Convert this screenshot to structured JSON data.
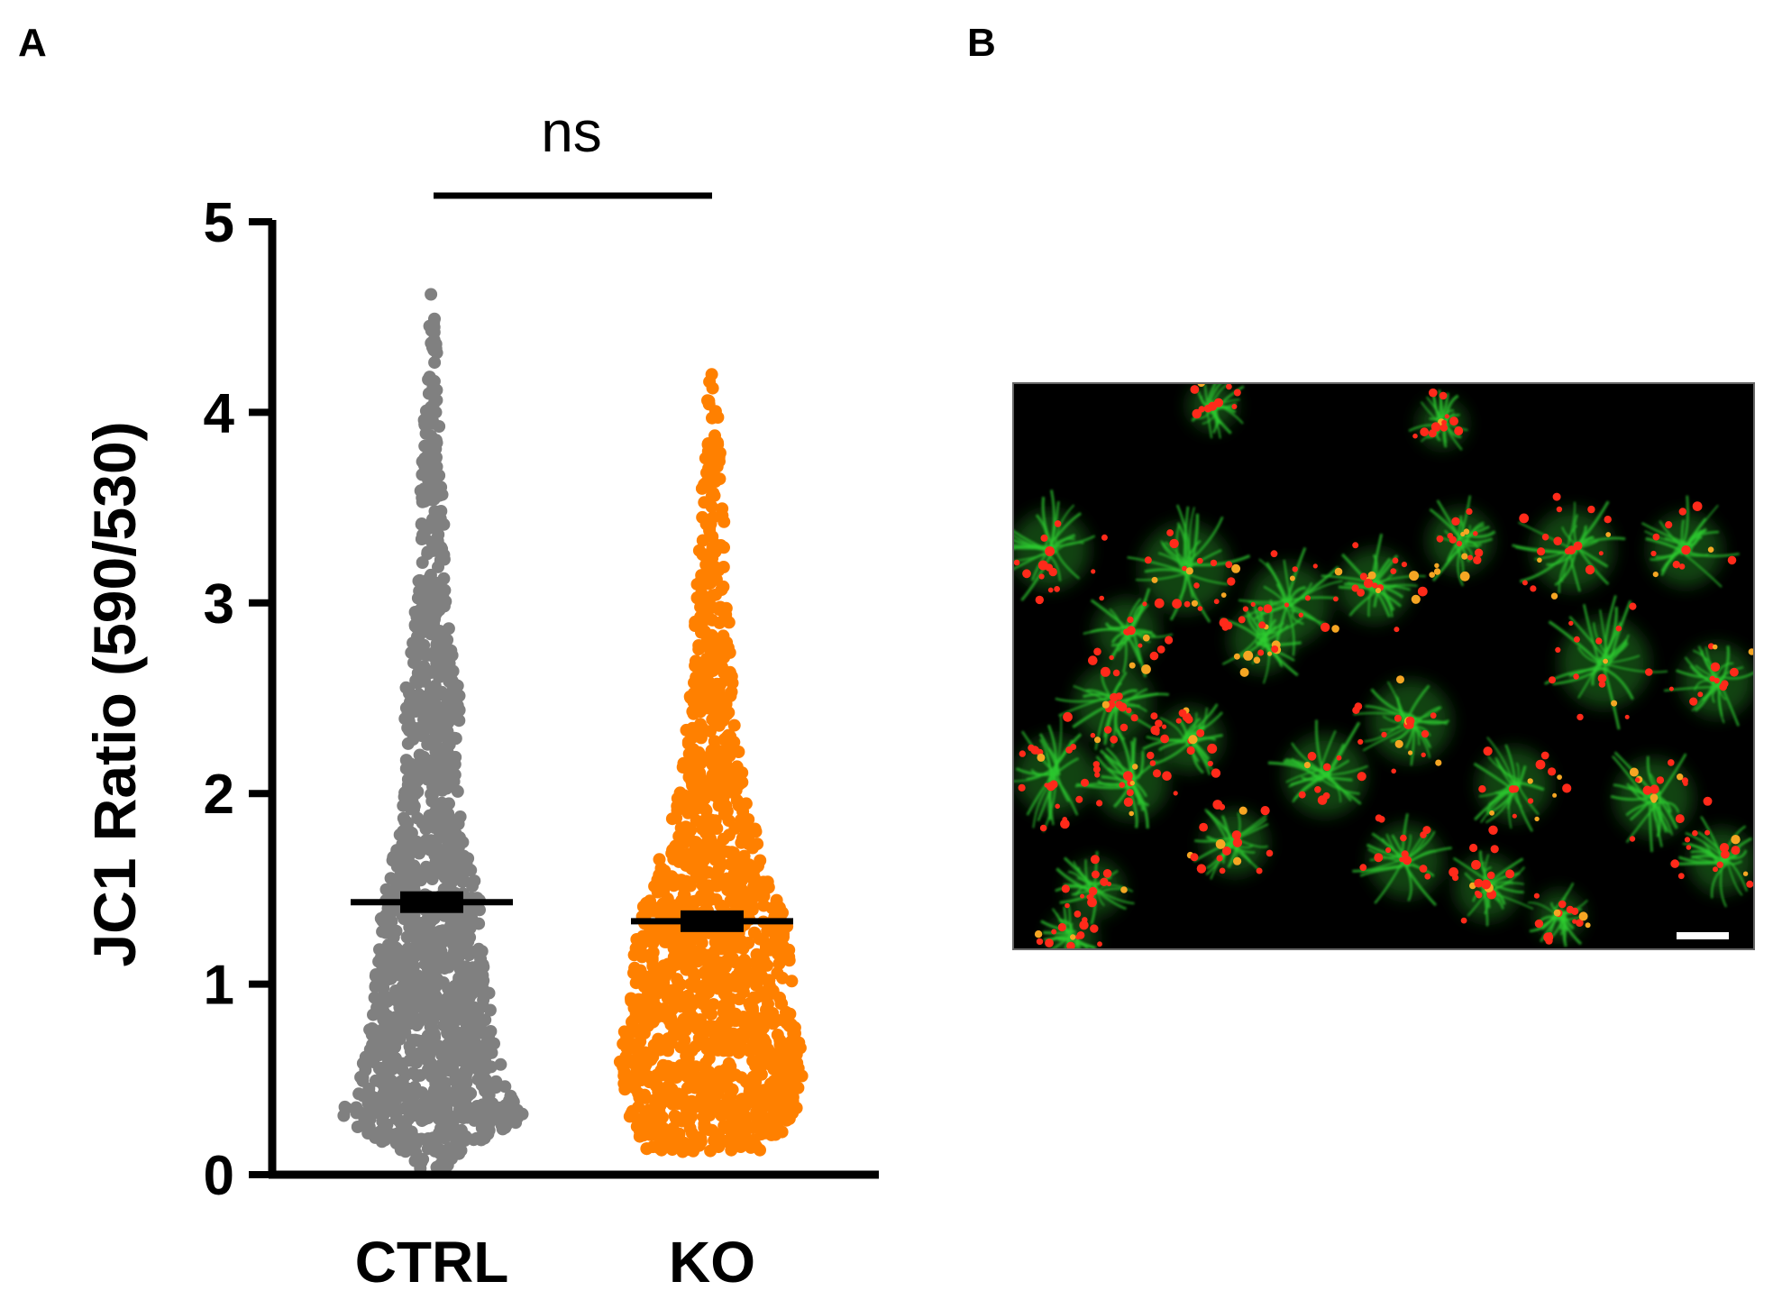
{
  "panels": {
    "a_label": "A",
    "b_label": "B"
  },
  "chart_data": {
    "type": "scatter",
    "subtype": "dot-plot",
    "title": "",
    "xlabel": "",
    "ylabel": "JC1 Ratio (590/530)",
    "ylim": [
      0,
      5
    ],
    "yticks": [
      0,
      1,
      2,
      3,
      4,
      5
    ],
    "categories": [
      "CTRL",
      "KO"
    ],
    "significance": {
      "between": [
        "CTRL",
        "KO"
      ],
      "label": "ns"
    },
    "series": [
      {
        "name": "CTRL",
        "color": "#808080",
        "mean": 1.43,
        "range": [
          0.03,
          4.62
        ],
        "distribution": [
          {
            "y": 0.05,
            "w": 0.18
          },
          {
            "y": 0.2,
            "w": 0.62
          },
          {
            "y": 0.3,
            "w": 1.0
          },
          {
            "y": 0.45,
            "w": 0.78
          },
          {
            "y": 0.7,
            "w": 0.68
          },
          {
            "y": 1.0,
            "w": 0.6
          },
          {
            "y": 1.3,
            "w": 0.55
          },
          {
            "y": 1.5,
            "w": 0.5
          },
          {
            "y": 1.8,
            "w": 0.34
          },
          {
            "y": 2.1,
            "w": 0.27
          },
          {
            "y": 2.5,
            "w": 0.3
          },
          {
            "y": 2.8,
            "w": 0.2
          },
          {
            "y": 3.2,
            "w": 0.14
          },
          {
            "y": 3.6,
            "w": 0.12
          },
          {
            "y": 4.0,
            "w": 0.08
          },
          {
            "y": 4.3,
            "w": 0.06
          },
          {
            "y": 4.62,
            "w": 0.03
          }
        ]
      },
      {
        "name": "KO",
        "color": "#ff8000",
        "mean": 1.33,
        "range": [
          0.12,
          4.22
        ],
        "distribution": [
          {
            "y": 0.12,
            "w": 0.7
          },
          {
            "y": 0.3,
            "w": 0.88
          },
          {
            "y": 0.6,
            "w": 0.98
          },
          {
            "y": 1.0,
            "w": 0.85
          },
          {
            "y": 1.3,
            "w": 0.8
          },
          {
            "y": 1.6,
            "w": 0.6
          },
          {
            "y": 1.9,
            "w": 0.4
          },
          {
            "y": 2.3,
            "w": 0.28
          },
          {
            "y": 2.7,
            "w": 0.2
          },
          {
            "y": 3.2,
            "w": 0.15
          },
          {
            "y": 3.6,
            "w": 0.11
          },
          {
            "y": 4.0,
            "w": 0.06
          },
          {
            "y": 4.22,
            "w": 0.03
          }
        ]
      }
    ]
  },
  "micrograph": {
    "background": "#000000",
    "channel_colors": [
      "#ff2a1a",
      "#2ecc30"
    ],
    "scale_bar_color": "#ffffff"
  }
}
